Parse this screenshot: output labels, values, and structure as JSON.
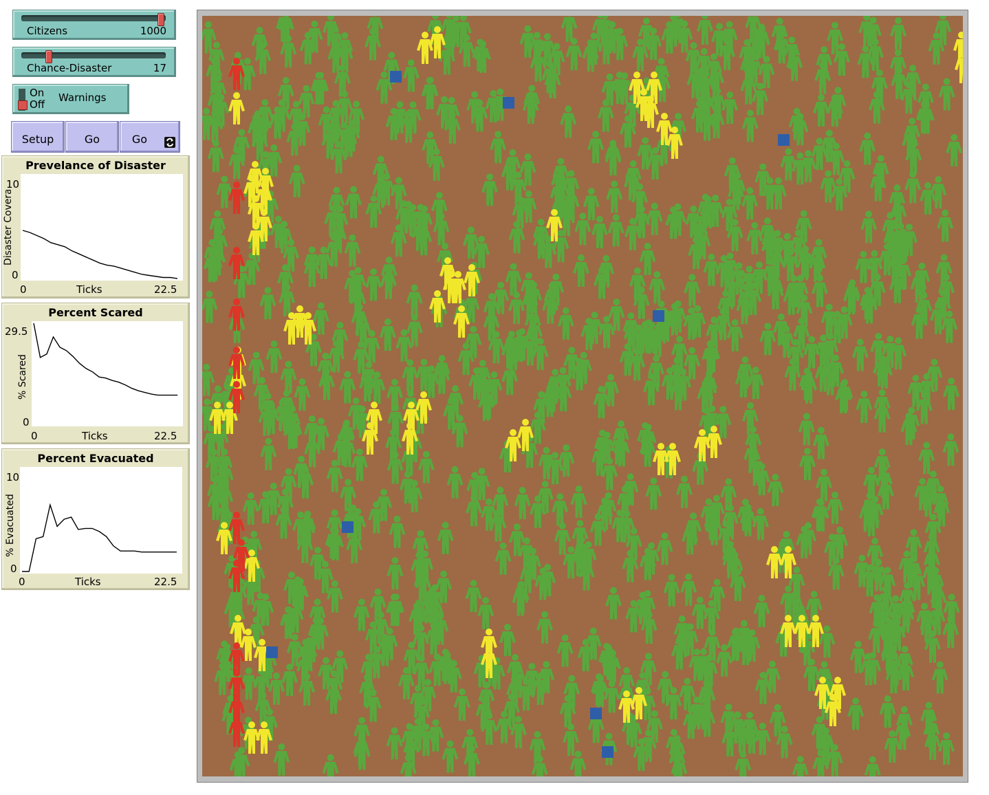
{
  "sliders": [
    {
      "label": "Citizens",
      "value": "1000",
      "fraction": 0.97
    },
    {
      "label": "Chance-Disaster",
      "value": "17",
      "fraction": 0.17
    }
  ],
  "switch": {
    "on_label": "On",
    "off_label": "Off",
    "name": "Warnings",
    "state": "off"
  },
  "buttons": {
    "setup": "Setup",
    "go": "Go",
    "go_forever": "Go"
  },
  "plots": [
    {
      "title": "Prevelance of Disaster",
      "ylabel": "Disaster Coverage",
      "xlabel": "Ticks",
      "ymax_label": "10",
      "ymin_label": "0",
      "xmin_label": "0",
      "xmax_label": "22.5",
      "chart_data": {
        "type": "line",
        "xlim": [
          0,
          22.5
        ],
        "ylim": [
          0,
          10
        ],
        "x": [
          0,
          1,
          2,
          3,
          4,
          5,
          6,
          7,
          8,
          9,
          10,
          11,
          12,
          13,
          14,
          15,
          16,
          17,
          18,
          19,
          20,
          21,
          22
        ],
        "y": [
          4.7,
          4.5,
          4.2,
          3.9,
          3.5,
          3.3,
          3.1,
          2.7,
          2.4,
          2.1,
          1.8,
          1.5,
          1.3,
          1.2,
          1.0,
          0.8,
          0.6,
          0.4,
          0.3,
          0.2,
          0.1,
          0.1,
          0.0
        ]
      }
    },
    {
      "title": "Percent Scared",
      "ylabel": "% Scared",
      "xlabel": "Ticks",
      "ymax_label": "29.5",
      "ymin_label": "0",
      "xmin_label": "0",
      "xmax_label": "22.5",
      "chart_data": {
        "type": "line",
        "xlim": [
          0,
          22.5
        ],
        "ylim": [
          0,
          29.5
        ],
        "x": [
          0,
          1,
          2,
          3,
          4,
          5,
          6,
          7,
          8,
          9,
          10,
          11,
          12,
          13,
          14,
          15,
          16,
          17,
          18,
          19,
          20,
          21,
          22
        ],
        "y": [
          29.5,
          19.5,
          20.5,
          25.5,
          22.5,
          21.5,
          19.8,
          17.8,
          16.3,
          15.3,
          13.8,
          13.5,
          12.8,
          12.3,
          11.5,
          10.5,
          9.8,
          9.3,
          8.8,
          8.5,
          8.5,
          8.5,
          8.5
        ]
      }
    },
    {
      "title": "Percent Evacuated",
      "ylabel": "% Evacuated",
      "xlabel": "Ticks",
      "ymax_label": "10",
      "ymin_label": "0",
      "xmin_label": "0",
      "xmax_label": "22.5",
      "chart_data": {
        "type": "line",
        "xlim": [
          0,
          22.5
        ],
        "ylim": [
          0,
          10
        ],
        "x": [
          0,
          1,
          2,
          3,
          4,
          5,
          6,
          7,
          8,
          9,
          10,
          11,
          12,
          13,
          14,
          15,
          16,
          17,
          18,
          19,
          20,
          21,
          22
        ],
        "y": [
          0,
          0,
          3.2,
          3.4,
          6.5,
          4.4,
          5.1,
          5.3,
          4.1,
          4.2,
          4.2,
          3.9,
          3.4,
          2.5,
          2.0,
          2.0,
          2.0,
          1.9,
          1.9,
          1.9,
          1.9,
          1.9,
          1.9
        ]
      }
    }
  ],
  "world": {
    "background_color": "#9d6a45",
    "citizen_color": "#58a83e",
    "scared_color": "#f2e82b",
    "evacuated_color": "#dd3527",
    "marker_color": "#2f5ea8",
    "citizen_count": 1000
  }
}
